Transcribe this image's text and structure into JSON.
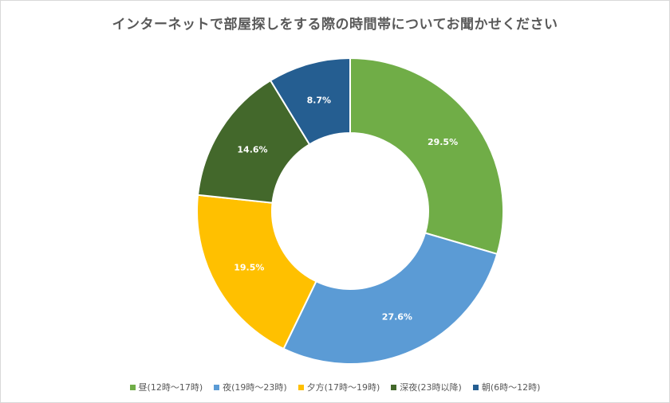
{
  "chart_data": {
    "type": "pie",
    "donut": true,
    "title": "インターネットで部屋探しをする際の時間帯についてお聞かせください",
    "legend_position": "bottom",
    "slices": [
      {
        "label": "昼(12時～17時)",
        "value": 29.5,
        "display": "29.5%",
        "color": "#70ad47"
      },
      {
        "label": "夜(19時～23時)",
        "value": 27.6,
        "display": "27.6%",
        "color": "#5b9bd5"
      },
      {
        "label": "夕方(17時～19時)",
        "value": 19.5,
        "display": "19.5%",
        "color": "#ffc000"
      },
      {
        "label": "深夜(23時以降)",
        "value": 14.6,
        "display": "14.6%",
        "color": "#43682b"
      },
      {
        "label": "朝(6時～12時)",
        "value": 8.7,
        "display": "8.7%",
        "color": "#255e91"
      }
    ]
  }
}
